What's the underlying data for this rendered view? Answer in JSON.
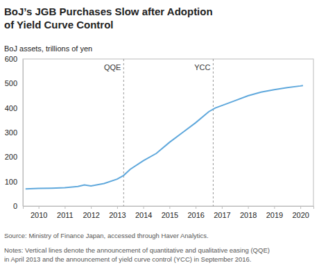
{
  "chart_data": {
    "type": "line",
    "title": "BoJ’s JGB Purchases Slow after Adoption\nof Yield Curve Control",
    "y_label": "BoJ assets, trillions of yen",
    "source": "Source: Ministry of Finance Japan, accessed through Haver Analytics.",
    "notes": "Notes: Vertical lines denote the announcement of quantitative and qualitative easing (QQE)\nin April 2013 and the announcement of yield curve control (YCC) in September 2016.",
    "x": [
      2009.5,
      2010.0,
      2010.5,
      2011.0,
      2011.5,
      2011.75,
      2012.0,
      2012.5,
      2013.0,
      2013.25,
      2013.5,
      2014.0,
      2014.5,
      2015.0,
      2015.5,
      2016.0,
      2016.5,
      2016.75,
      2017.0,
      2017.5,
      2018.0,
      2018.5,
      2019.0,
      2019.5,
      2020.0,
      2020.1
    ],
    "series": [
      {
        "name": "BoJ assets",
        "color": "#5fa8dc",
        "values": [
          70,
          72,
          73,
          75,
          80,
          86,
          82,
          92,
          110,
          125,
          150,
          185,
          215,
          260,
          300,
          340,
          385,
          400,
          410,
          430,
          450,
          465,
          475,
          483,
          490,
          492
        ]
      }
    ],
    "xlim": [
      2009.4,
      2020.5
    ],
    "xticks": [
      2010,
      2011,
      2012,
      2013,
      2014,
      2015,
      2016,
      2017,
      2018,
      2019,
      2020
    ],
    "ylim": [
      0,
      600
    ],
    "yticks": [
      0,
      100,
      200,
      300,
      400,
      500,
      600
    ],
    "grid": false,
    "annotations": [
      {
        "x": 2013.25,
        "label": "QQE"
      },
      {
        "x": 2016.67,
        "label": "YCC"
      }
    ]
  }
}
